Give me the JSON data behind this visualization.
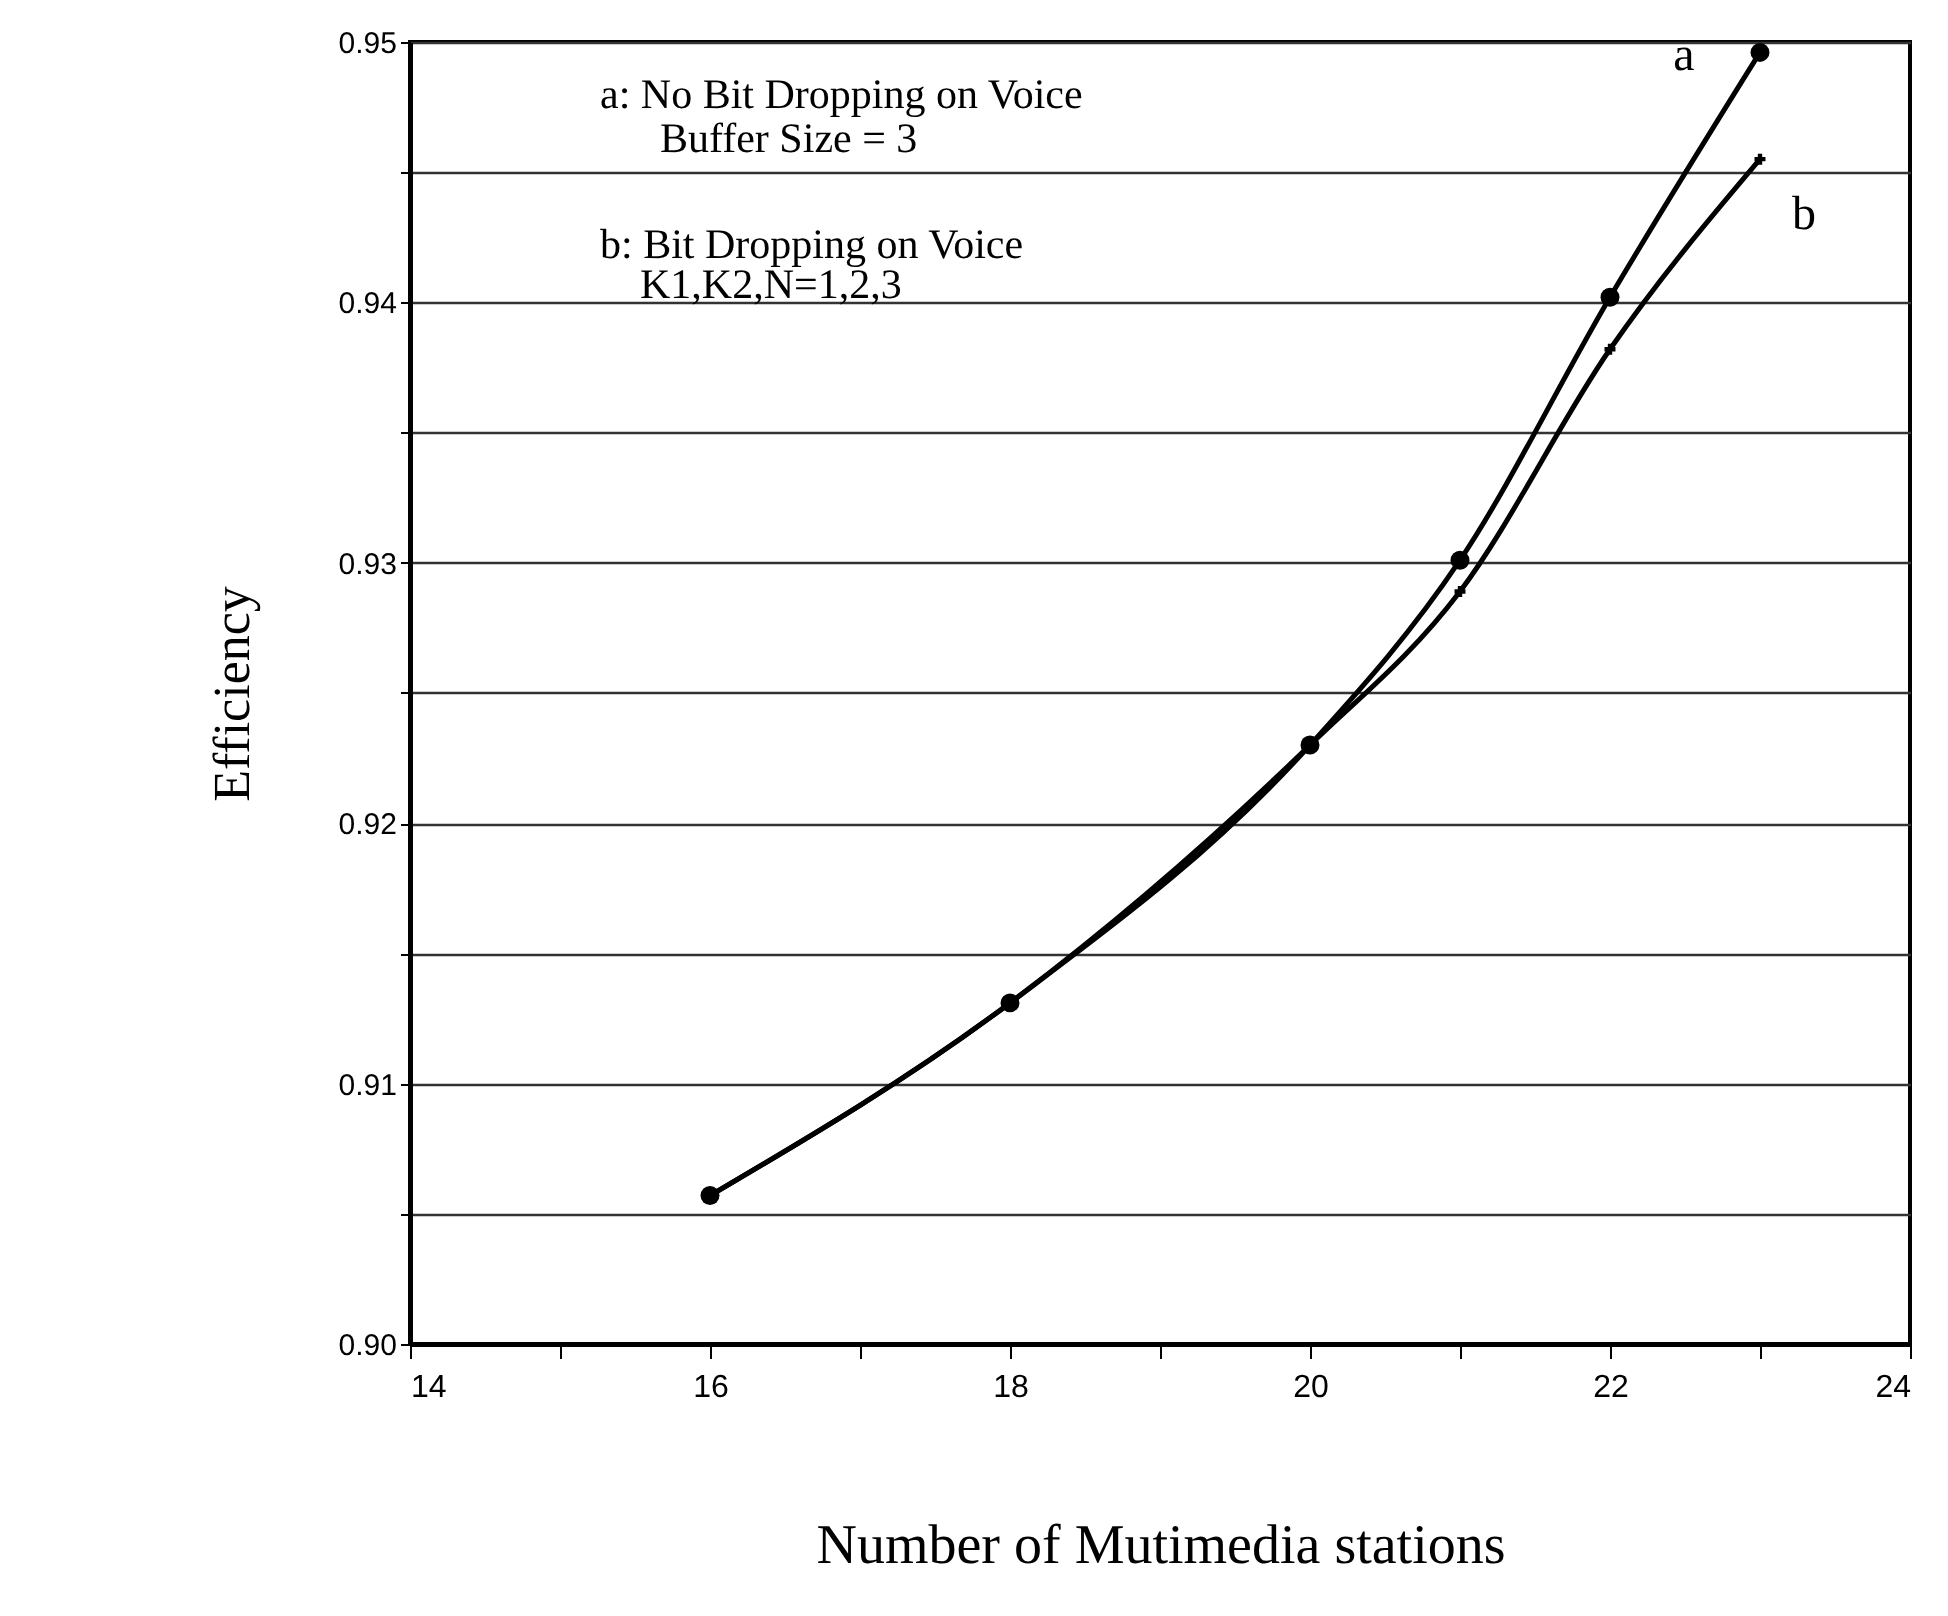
{
  "chart_data": {
    "type": "line",
    "xlabel": "Number of Mutimedia stations",
    "ylabel": "Efficiency",
    "x": [
      16,
      18,
      20,
      21,
      22,
      23
    ],
    "series": [
      {
        "name": "a",
        "color": "#000000",
        "marker": "circle",
        "values": [
          0.9057,
          0.9131,
          0.923,
          0.9301,
          0.9402,
          0.9496
        ]
      },
      {
        "name": "b",
        "color": "#000000",
        "marker": "cross",
        "values": [
          0.9057,
          0.9131,
          0.923,
          0.9289,
          0.9382,
          0.9455
        ]
      }
    ],
    "xlim": [
      14,
      24
    ],
    "xticks": [
      14,
      {
        "value": 15,
        "label": null
      },
      16,
      {
        "value": 17,
        "label": null
      },
      18,
      {
        "value": 19,
        "label": null
      },
      20,
      {
        "value": 21,
        "label": null
      },
      22,
      {
        "value": 23,
        "label": null
      },
      24
    ],
    "ylim": [
      0.9,
      0.95
    ],
    "yticks": [
      {
        "value": 0.9,
        "label": "0.90"
      },
      {
        "value": 0.905,
        "label": null
      },
      0.91,
      {
        "value": 0.915,
        "label": null
      },
      0.92,
      {
        "value": 0.925,
        "label": null
      },
      0.93,
      {
        "value": 0.935,
        "label": null
      },
      0.94,
      {
        "value": 0.945,
        "label": null
      },
      0.95
    ],
    "grid": "y",
    "line_style": "solid",
    "annotations": [
      "a: No Bit Dropping on Voice",
      "Buffer Size = 3",
      "b: Bit Dropping on Voice",
      "K1,K2,N=1,2,3"
    ]
  }
}
